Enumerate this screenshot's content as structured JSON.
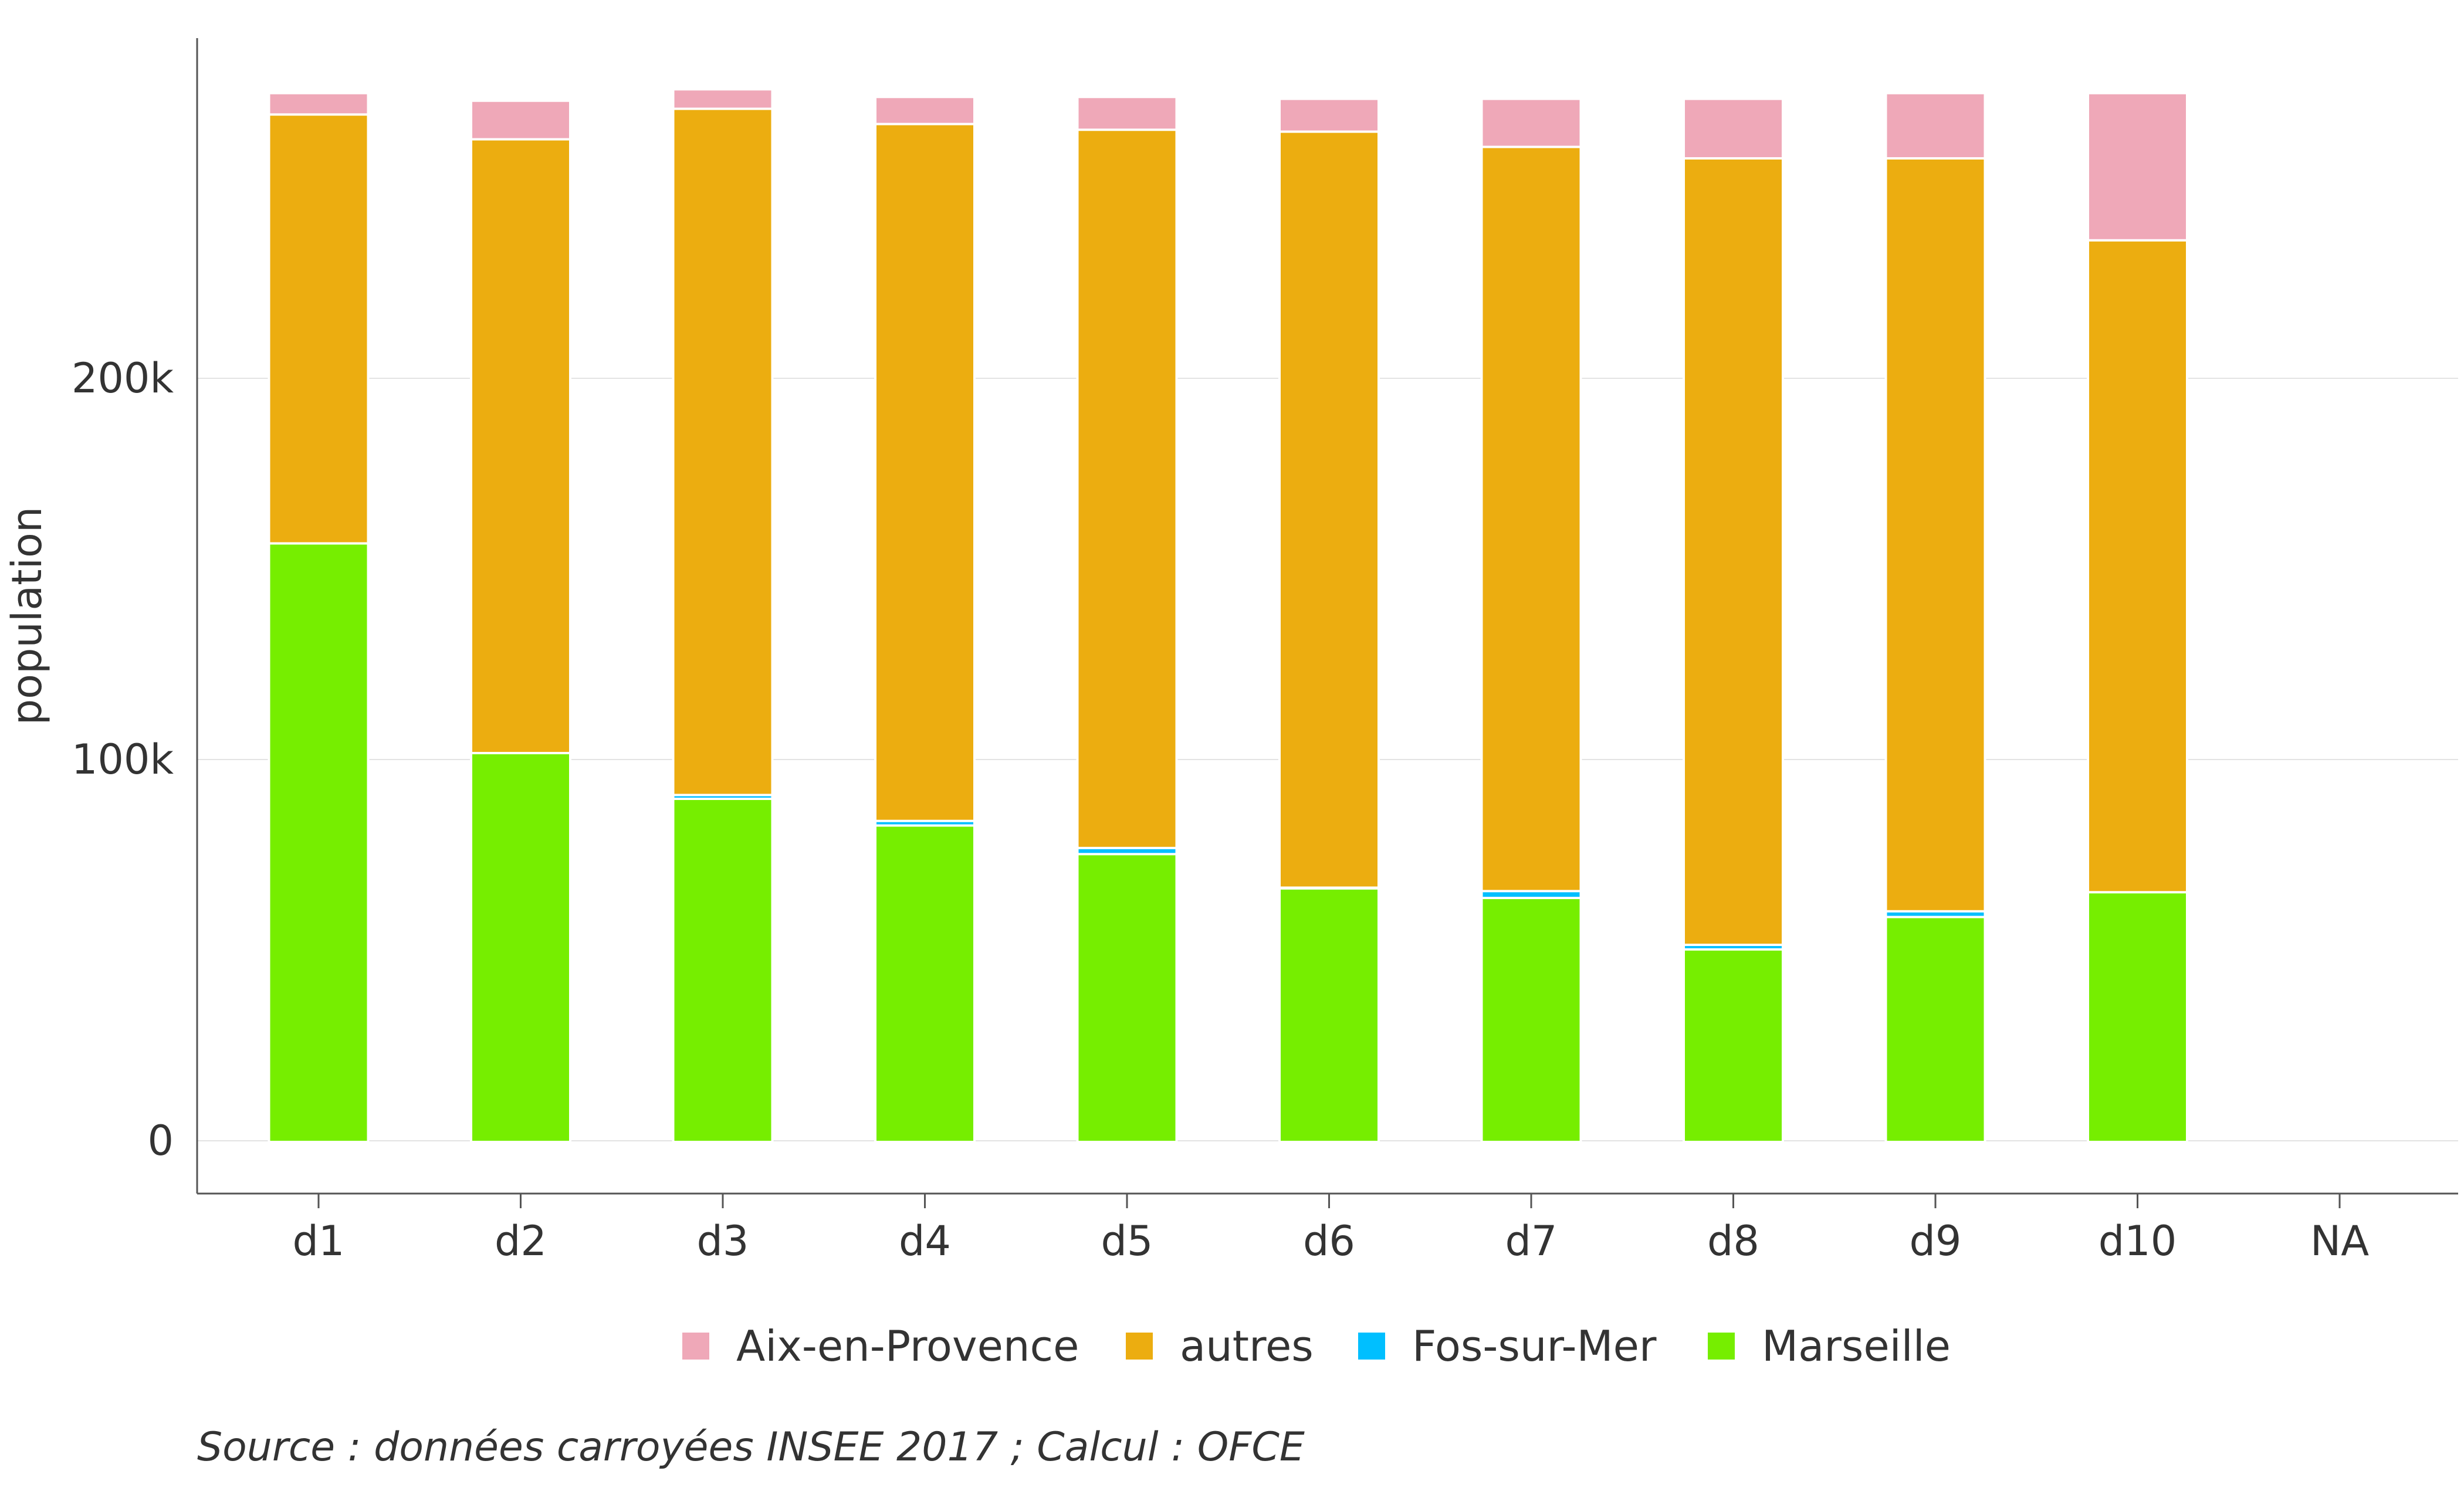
{
  "chart_data": {
    "type": "bar",
    "stacked": true,
    "title": "",
    "xlabel": "",
    "ylabel": "population",
    "ylim": [
      0,
      285000
    ],
    "yticks": [
      0,
      100000,
      200000
    ],
    "ytick_labels": [
      "0",
      "100k",
      "200k"
    ],
    "grid": true,
    "legend_position": "bottom",
    "categories": [
      "d1",
      "d2",
      "d3",
      "d4",
      "d5",
      "d6",
      "d7",
      "d8",
      "d9",
      "d10",
      "NA"
    ],
    "series": [
      {
        "name": "Marseille",
        "color": "#76EE00",
        "values": [
          157000,
          102000,
          90000,
          83000,
          75500,
          66500,
          64000,
          50500,
          59000,
          65500,
          null
        ]
      },
      {
        "name": "Fos-sur-Mer",
        "color": "#00BFFF",
        "values": [
          0,
          0,
          1000,
          1200,
          1600,
          200,
          1800,
          1200,
          1500,
          0,
          null
        ]
      },
      {
        "name": "autres",
        "color": "#ECAD10",
        "values": [
          112500,
          161000,
          180000,
          182800,
          188400,
          198300,
          195200,
          206300,
          197500,
          171000,
          null
        ]
      },
      {
        "name": "Aix-en-Provence",
        "color": "#EFA8B8",
        "values": [
          5000,
          9500,
          4500,
          6500,
          8000,
          8000,
          12000,
          15000,
          16500,
          38000,
          null
        ]
      }
    ],
    "legend_order": [
      "Aix-en-Provence",
      "autres",
      "Fos-sur-Mer",
      "Marseille"
    ],
    "source_note": "Source : données carroyées INSEE 2017 ; Calcul : OFCE"
  }
}
